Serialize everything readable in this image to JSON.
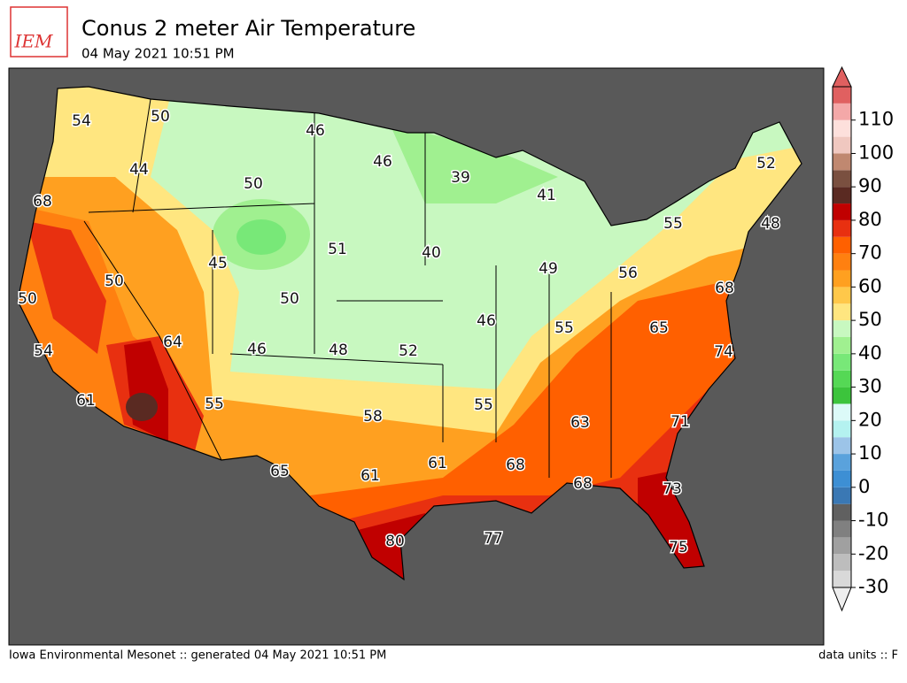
{
  "header": {
    "logo_text": "IEM",
    "title": "Conus 2 meter Air Temperature",
    "subtitle": "04 May 2021 10:51 PM"
  },
  "map": {
    "contour_labels": [
      54,
      50,
      46,
      46,
      39,
      41,
      52,
      44,
      50,
      68,
      55,
      48,
      51,
      40,
      45,
      49,
      56,
      50,
      50,
      68,
      50,
      46,
      55,
      65,
      64,
      46,
      48,
      52,
      74,
      54,
      61,
      55,
      55,
      58,
      63,
      71,
      61,
      68,
      65,
      61,
      68,
      73,
      77,
      80,
      75
    ]
  },
  "colorbar": {
    "clim": [
      -30,
      120
    ],
    "ticks": [
      -30,
      -20,
      -10,
      0,
      10,
      20,
      30,
      40,
      50,
      60,
      70,
      80,
      90,
      100,
      110
    ],
    "colors": [
      "#d9d9d9",
      "#bdbdbd",
      "#a0a0a0",
      "#808080",
      "#606060",
      "#3a78b4",
      "#3d8fd4",
      "#5aa2dc",
      "#9cc4e8",
      "#b4f2f0",
      "#dcfaf8",
      "#3cc43c",
      "#55d855",
      "#78e878",
      "#a0f090",
      "#c8f8c0",
      "#ffe680",
      "#ffc84a",
      "#ffa020",
      "#ff8010",
      "#ff6000",
      "#e83010",
      "#c00000",
      "#5a2a22",
      "#7a5040",
      "#c08870",
      "#f0c8c0",
      "#fde0dc",
      "#f4a8a8",
      "#e06060"
    ]
  },
  "footer": {
    "left": "Iowa Environmental Mesonet :: generated 04 May 2021 10:51 PM",
    "right": "data units :: F"
  }
}
